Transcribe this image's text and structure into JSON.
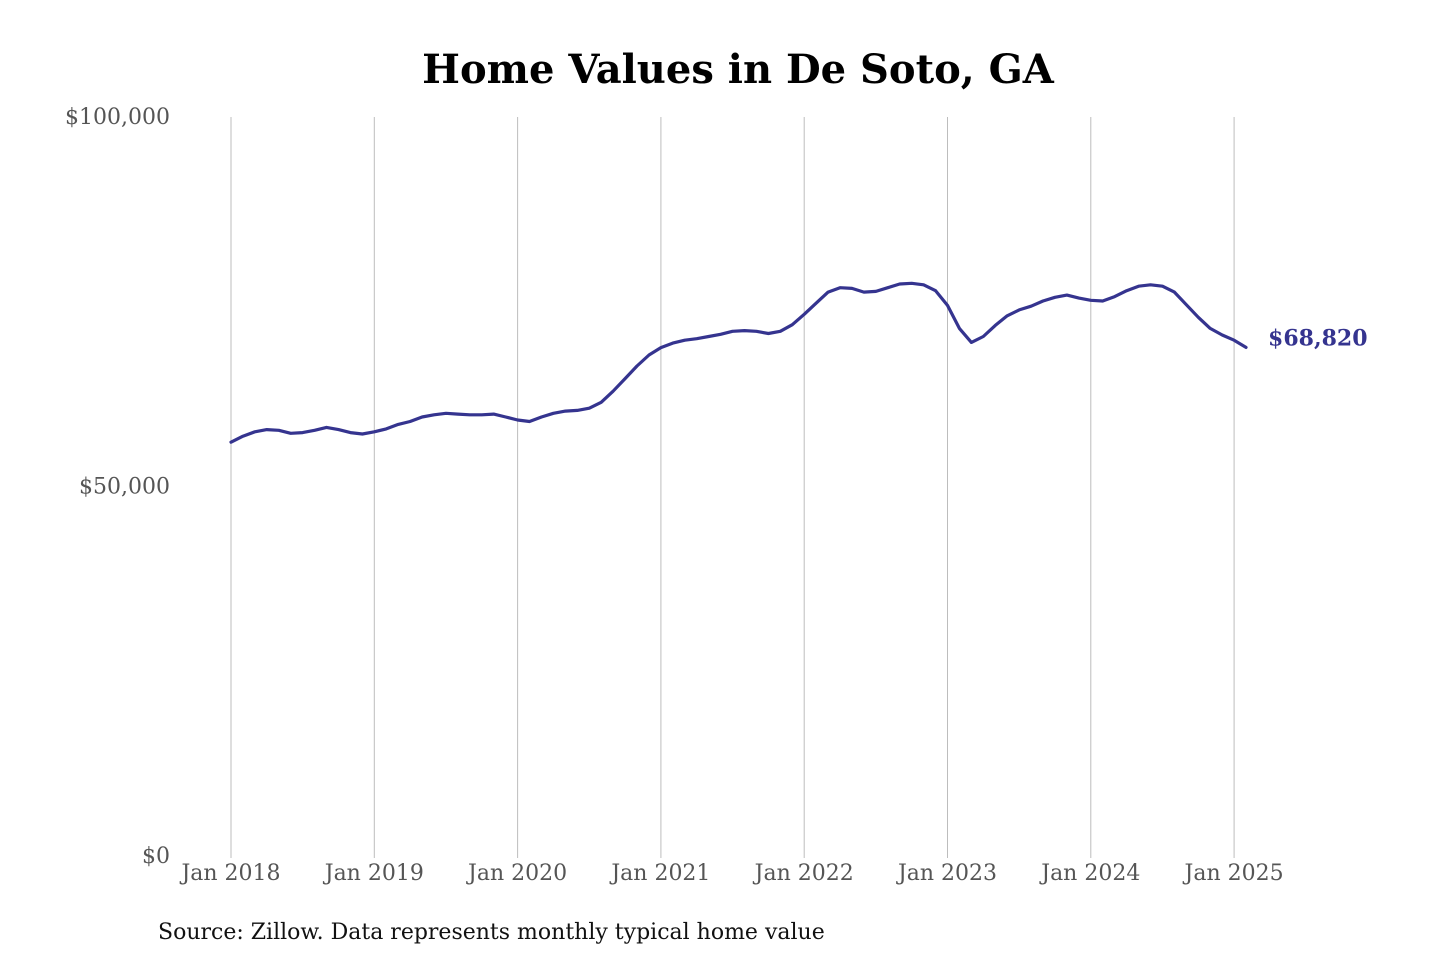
{
  "chart_data": {
    "type": "line",
    "title": "Home Values in De Soto, GA",
    "source": "Source: Zillow. Data represents monthly typical home value",
    "xlabel": "",
    "ylabel": "",
    "ylim": [
      0,
      100000
    ],
    "y_ticks": [
      {
        "value": 0,
        "label": "$0"
      },
      {
        "value": 50000,
        "label": "$50,000"
      },
      {
        "value": 100000,
        "label": "$100,000"
      }
    ],
    "x_ticks": [
      {
        "value": "2018-01",
        "label": "Jan 2018"
      },
      {
        "value": "2019-01",
        "label": "Jan 2019"
      },
      {
        "value": "2020-01",
        "label": "Jan 2020"
      },
      {
        "value": "2021-01",
        "label": "Jan 2021"
      },
      {
        "value": "2022-01",
        "label": "Jan 2022"
      },
      {
        "value": "2023-01",
        "label": "Jan 2023"
      },
      {
        "value": "2024-01",
        "label": "Jan 2024"
      },
      {
        "value": "2025-01",
        "label": "Jan 2025"
      }
    ],
    "grid": {
      "vertical": true,
      "horizontal": false
    },
    "line_color": "#35348f",
    "end_label": "$68,820",
    "series": [
      {
        "x": [
          "2018-01",
          "2018-02",
          "2018-03",
          "2018-04",
          "2018-05",
          "2018-06",
          "2018-07",
          "2018-08",
          "2018-09",
          "2018-10",
          "2018-11",
          "2018-12",
          "2019-01",
          "2019-02",
          "2019-03",
          "2019-04",
          "2019-05",
          "2019-06",
          "2019-07",
          "2019-08",
          "2019-09",
          "2019-10",
          "2019-11",
          "2019-12",
          "2020-01",
          "2020-02",
          "2020-03",
          "2020-04",
          "2020-05",
          "2020-06",
          "2020-07",
          "2020-08",
          "2020-09",
          "2020-10",
          "2020-11",
          "2020-12",
          "2021-01",
          "2021-02",
          "2021-03",
          "2021-04",
          "2021-05",
          "2021-06",
          "2021-07",
          "2021-08",
          "2021-09",
          "2021-10",
          "2021-11",
          "2021-12",
          "2022-01",
          "2022-02",
          "2022-03",
          "2022-04",
          "2022-05",
          "2022-06",
          "2022-07",
          "2022-08",
          "2022-09",
          "2022-10",
          "2022-11",
          "2022-12",
          "2023-01",
          "2023-02",
          "2023-03",
          "2023-04",
          "2023-05",
          "2023-06",
          "2023-07",
          "2023-08",
          "2023-09",
          "2023-10",
          "2023-11",
          "2023-12",
          "2024-01",
          "2024-02",
          "2024-03",
          "2024-04",
          "2024-05",
          "2024-06",
          "2024-07",
          "2024-08",
          "2024-09",
          "2024-10",
          "2024-11",
          "2024-12",
          "2025-01",
          "2025-02"
        ],
        "values": [
          56000,
          56800,
          57400,
          57700,
          57600,
          57200,
          57300,
          57600,
          58000,
          57700,
          57300,
          57100,
          57400,
          57800,
          58400,
          58800,
          59400,
          59700,
          59900,
          59800,
          59700,
          59700,
          59800,
          59400,
          59000,
          58800,
          59400,
          59900,
          60200,
          60300,
          60600,
          61400,
          62900,
          64600,
          66300,
          67800,
          68800,
          69400,
          69800,
          70000,
          70300,
          70600,
          71000,
          71100,
          71000,
          70700,
          71000,
          71900,
          73300,
          74800,
          76300,
          76900,
          76800,
          76300,
          76400,
          76900,
          77400,
          77500,
          77300,
          76500,
          74500,
          71400,
          69500,
          70300,
          71800,
          73100,
          73900,
          74400,
          75100,
          75600,
          75900,
          75500,
          75200,
          75100,
          75700,
          76500,
          77100,
          77300,
          77100,
          76300,
          74600,
          72900,
          71400,
          70500,
          69800,
          68820
        ]
      }
    ]
  }
}
